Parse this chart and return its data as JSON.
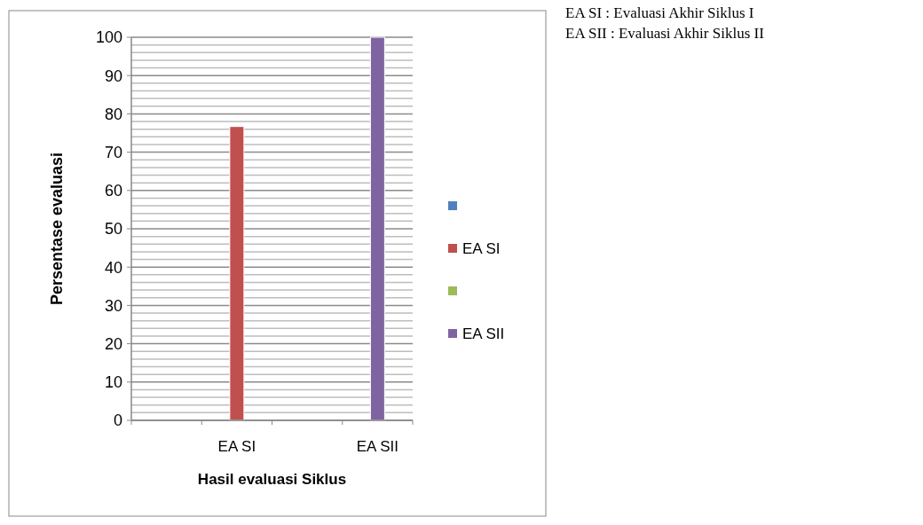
{
  "chart_data": {
    "type": "bar",
    "xlabel": "Hasil evaluasi Siklus",
    "ylabel": "Persentase evaluasi",
    "categories": [
      null,
      "EA SI",
      null,
      "EA SII"
    ],
    "series": [
      {
        "color": "#4f81bd",
        "values": [
          null,
          null,
          null,
          null
        ]
      },
      {
        "name": "EA SI",
        "color": "#c0504d",
        "values": [
          null,
          76.7,
          null,
          null
        ]
      },
      {
        "color": "#9bbb59",
        "values": [
          null,
          null,
          null,
          null
        ]
      },
      {
        "name": "EA SII",
        "color": "#8064a2",
        "values": [
          null,
          null,
          null,
          100
        ]
      }
    ],
    "ylim": [
      0,
      100
    ],
    "yticks": [
      0,
      {
        "value": 2,
        "label": null
      },
      {
        "value": 4,
        "label": null
      },
      {
        "value": 6,
        "label": null
      },
      {
        "value": 8,
        "label": null
      },
      10,
      {
        "value": 12,
        "label": null
      },
      {
        "value": 14,
        "label": null
      },
      {
        "value": 16,
        "label": null
      },
      {
        "value": 18,
        "label": null
      },
      20,
      {
        "value": 22,
        "label": null
      },
      {
        "value": 24,
        "label": null
      },
      {
        "value": 26,
        "label": null
      },
      {
        "value": 28,
        "label": null
      },
      30,
      {
        "value": 32,
        "label": null
      },
      {
        "value": 34,
        "label": null
      },
      {
        "value": 36,
        "label": null
      },
      {
        "value": 38,
        "label": null
      },
      40,
      {
        "value": 42,
        "label": null
      },
      {
        "value": 44,
        "label": null
      },
      {
        "value": 46,
        "label": null
      },
      {
        "value": 48,
        "label": null
      },
      50,
      {
        "value": 52,
        "label": null
      },
      {
        "value": 54,
        "label": null
      },
      {
        "value": 56,
        "label": null
      },
      {
        "value": 58,
        "label": null
      },
      60,
      {
        "value": 62,
        "label": null
      },
      {
        "value": 64,
        "label": null
      },
      {
        "value": 66,
        "label": null
      },
      {
        "value": 68,
        "label": null
      },
      70,
      {
        "value": 72,
        "label": null
      },
      {
        "value": 74,
        "label": null
      },
      {
        "value": 76,
        "label": null
      },
      {
        "value": 78,
        "label": null
      },
      80,
      {
        "value": 82,
        "label": null
      },
      {
        "value": 84,
        "label": null
      },
      {
        "value": 86,
        "label": null
      },
      {
        "value": 88,
        "label": null
      },
      90,
      {
        "value": 92,
        "label": null
      },
      {
        "value": 94,
        "label": null
      },
      {
        "value": 96,
        "label": null
      },
      {
        "value": 98,
        "label": null
      },
      100
    ],
    "grid": true,
    "legend": "right",
    "annotations": [
      "EA SI : Evaluasi Akhir Siklus I",
      "EA SII : Evaluasi Akhir Siklus II"
    ]
  }
}
